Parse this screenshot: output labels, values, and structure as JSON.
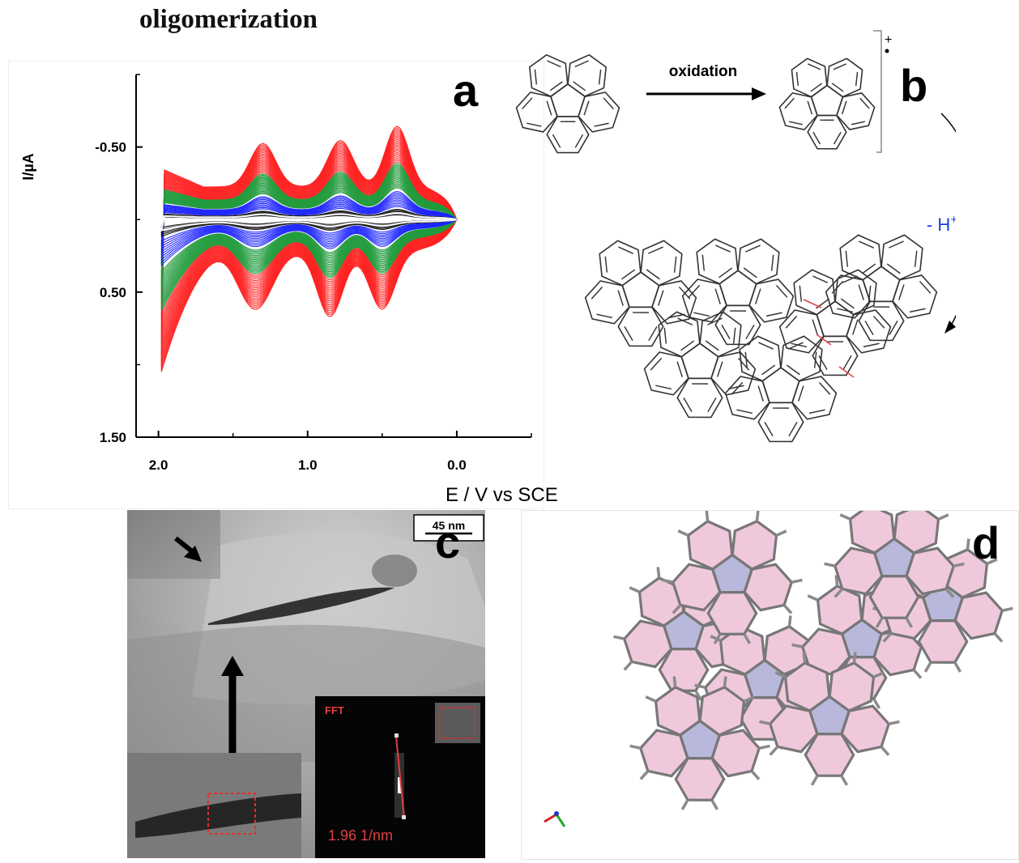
{
  "figure": {
    "title": "oligomerization",
    "panels": {
      "a": "a",
      "b": "b",
      "c": "c",
      "d": "d"
    }
  },
  "panel_b": {
    "arrow_label": "oxidation",
    "radical_cation_mark": "+",
    "proton_loss_label": "- H",
    "proton_loss_superscript": "+",
    "colors": {
      "arrow": "#000000",
      "proton_label": "#1a3fd6",
      "new_bonds": "#e04848"
    }
  },
  "panel_c": {
    "scale_bar_label": "45 nm",
    "fft_label": "FFT",
    "fft_distance": "1.96 1/nm",
    "colors": {
      "fft_text": "#e04040",
      "roi_box": "#e03030"
    }
  },
  "panel_d": {
    "colors": {
      "hexagon_fill": "#f0c8dc",
      "pentagon_fill": "#b8b8dc",
      "bond": "#777777"
    }
  },
  "chart_data": {
    "type": "line",
    "title": "",
    "xlabel": "E / V vs SCE",
    "ylabel": "I/µA",
    "xlim": [
      2.15,
      -0.5
    ],
    "ylim": [
      -1.0,
      1.5
    ],
    "y_inverted": true,
    "x_ticks": [
      "2.0",
      "1.0",
      "0.0"
    ],
    "y_ticks": [
      "-0.50",
      "0.50",
      "1.50"
    ],
    "series": [
      {
        "color": "#ff2020",
        "cycles": 20,
        "start_scale": 0.62,
        "end_scale": 1.0
      },
      {
        "color": "#1f9a3a",
        "cycles": 18,
        "start_scale": 0.34,
        "end_scale": 0.6
      },
      {
        "color": "#1a22ff",
        "cycles": 10,
        "start_scale": 0.14,
        "end_scale": 0.3
      },
      {
        "color": "#111111",
        "cycles": 6,
        "start_scale": 0.05,
        "end_scale": 0.11
      },
      {
        "color": "#ffffff",
        "cycles": 1,
        "start_scale": 0.07,
        "end_scale": 0.07
      }
    ],
    "anodic_peaks_V": [
      1.3,
      0.78,
      0.4
    ],
    "cathodic_peaks_V": [
      1.35,
      0.85,
      0.5
    ]
  }
}
